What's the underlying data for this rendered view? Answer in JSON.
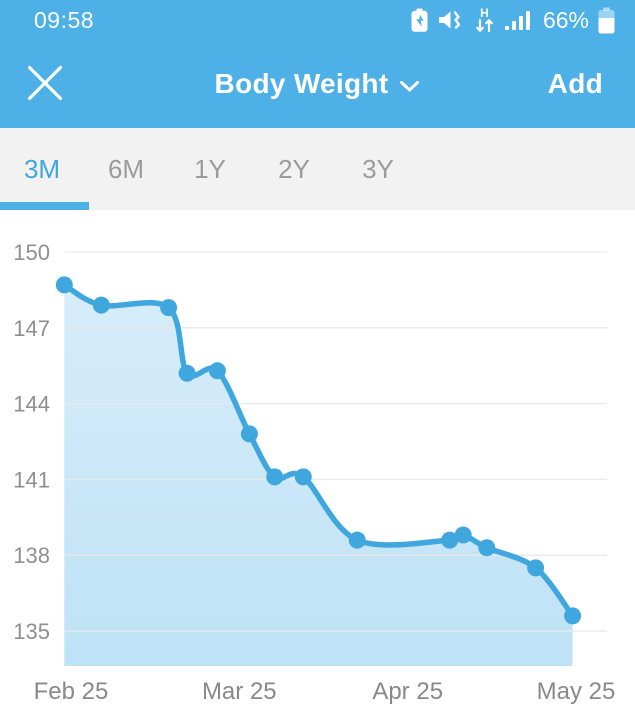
{
  "status_bar": {
    "time": "09:58",
    "battery_percent": "66%",
    "icons": [
      "battery-saver-icon",
      "mute-vibrate-icon",
      "hspa-data-icon",
      "signal-strength-icon",
      "battery-icon"
    ],
    "network_letter": "H"
  },
  "header": {
    "title": "Body Weight",
    "add_label": "Add"
  },
  "tabs": [
    {
      "label": "3M",
      "active": true
    },
    {
      "label": "6M",
      "active": false
    },
    {
      "label": "1Y",
      "active": false
    },
    {
      "label": "2Y",
      "active": false
    },
    {
      "label": "3Y",
      "active": false
    }
  ],
  "colors": {
    "header_blue": "#4DB0E6",
    "accent_blue": "#3FA7DD",
    "area_fill_top": "#D7EDFA",
    "area_fill_bottom": "#BEE2F6",
    "tab_inactive": "#9B9B9B",
    "tab_bar_bg": "#F2F2F2",
    "gridline": "#E9E9E9",
    "axis_label": "#8F8F8F",
    "x_label": "#898989"
  },
  "chart_data": {
    "type": "area",
    "title": "Body Weight",
    "xlabel": "",
    "ylabel": "",
    "grid": true,
    "legend": false,
    "y_ticks": [
      150,
      147,
      144,
      141,
      138,
      135
    ],
    "ylim": [
      133.6,
      151.7
    ],
    "x_tick_labels": [
      "Feb 25",
      "Mar 25",
      "Apr 25",
      "May 25"
    ],
    "x_unit": "months from first tick (0 = Feb 25, 1 = Mar 25, 2 = Apr 25, 3 = May 25)",
    "points": [
      {
        "x_months": -0.04,
        "value": 148.7
      },
      {
        "x_months": 0.18,
        "value": 147.9
      },
      {
        "x_months": 0.58,
        "value": 147.8
      },
      {
        "x_months": 0.69,
        "value": 145.2
      },
      {
        "x_months": 0.87,
        "value": 145.3
      },
      {
        "x_months": 1.06,
        "value": 142.8
      },
      {
        "x_months": 1.21,
        "value": 141.1
      },
      {
        "x_months": 1.38,
        "value": 141.1
      },
      {
        "x_months": 1.7,
        "value": 138.6
      },
      {
        "x_months": 2.25,
        "value": 138.6
      },
      {
        "x_months": 2.33,
        "value": 138.8
      },
      {
        "x_months": 2.47,
        "value": 138.3
      },
      {
        "x_months": 2.76,
        "value": 137.5
      },
      {
        "x_months": 2.98,
        "value": 135.6
      }
    ]
  }
}
